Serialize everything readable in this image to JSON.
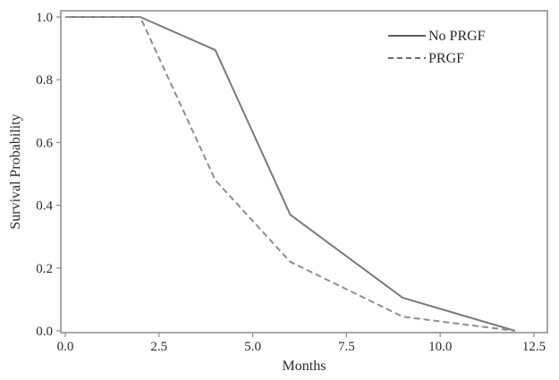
{
  "chart_data": {
    "type": "line",
    "title": "",
    "xlabel": "Months",
    "ylabel": "Survival Probability",
    "xlim": [
      0,
      12.5
    ],
    "ylim": [
      0,
      1.0
    ],
    "x_ticks": [
      "0.0",
      "2.5",
      "5.0",
      "7.5",
      "10.0",
      "12.5"
    ],
    "y_ticks": [
      "0.0",
      "0.2",
      "0.4",
      "0.6",
      "0.8",
      "1.0"
    ],
    "grid": false,
    "legend_position": "top-right",
    "series": [
      {
        "name": "No PRGF",
        "style": "solid",
        "color": "#7a7a7a",
        "x": [
          0,
          2,
          4,
          6,
          9,
          12
        ],
        "y": [
          1.0,
          1.0,
          0.895,
          0.37,
          0.105,
          0.0
        ]
      },
      {
        "name": "PRGF",
        "style": "dashed",
        "color": "#8e8e8e",
        "x": [
          0,
          2,
          4,
          6,
          9,
          12
        ],
        "y": [
          1.0,
          1.0,
          0.48,
          0.22,
          0.045,
          0.0
        ]
      }
    ]
  }
}
